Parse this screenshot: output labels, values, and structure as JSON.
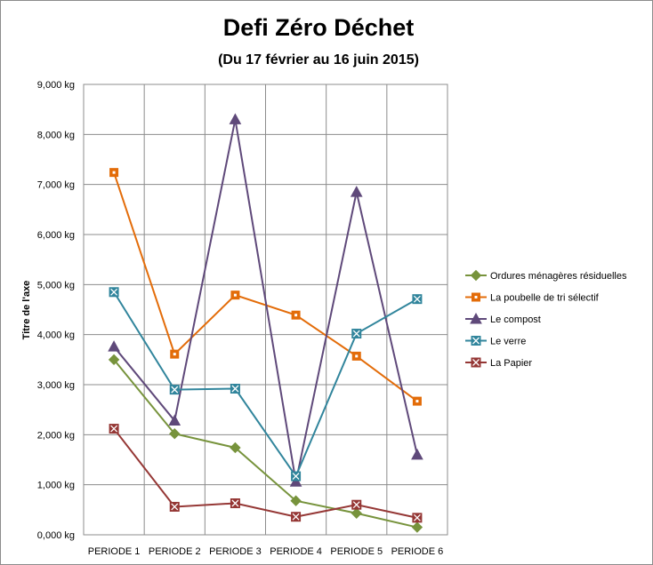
{
  "chart_data": {
    "type": "line",
    "title": "Defi Zéro Déchet",
    "subtitle": "(Du 17 février au 16 juin 2015)",
    "ylabel": "Titre de l'axe",
    "xlabel": "",
    "categories": [
      "PERIODE 1",
      "PERIODE 2",
      "PERIODE 3",
      "PERIODE 4",
      "PERIODE 5",
      "PERIODE 6"
    ],
    "ylim": [
      0,
      9000
    ],
    "yticks": [
      0,
      1000,
      2000,
      3000,
      4000,
      5000,
      6000,
      7000,
      8000,
      9000
    ],
    "ytick_labels": [
      "0,000 kg",
      "1,000 kg",
      "2,000 kg",
      "3,000 kg",
      "4,000 kg",
      "5,000 kg",
      "6,000 kg",
      "7,000 kg",
      "8,000 kg",
      "9,000 kg"
    ],
    "grid": true,
    "legend_position": "right",
    "series": [
      {
        "name": "Ordures ménagères résiduelles",
        "color": "#77933c",
        "marker": "diamond",
        "values": [
          3500,
          2020,
          1740,
          680,
          430,
          150
        ]
      },
      {
        "name": "La poubelle de tri sélectif",
        "color": "#e36c09",
        "marker": "square",
        "values": [
          7240,
          3610,
          4790,
          4390,
          3570,
          2670
        ]
      },
      {
        "name": "Le compost",
        "color": "#5f497a",
        "marker": "triangle",
        "values": [
          3760,
          2280,
          8300,
          1060,
          6850,
          1600
        ]
      },
      {
        "name": "Le verre",
        "color": "#31859c",
        "marker": "x-square",
        "values": [
          4850,
          2900,
          2920,
          1170,
          4020,
          4710
        ]
      },
      {
        "name": "La Papier",
        "color": "#953735",
        "marker": "x-square",
        "values": [
          2120,
          560,
          630,
          360,
          600,
          340
        ]
      }
    ]
  }
}
